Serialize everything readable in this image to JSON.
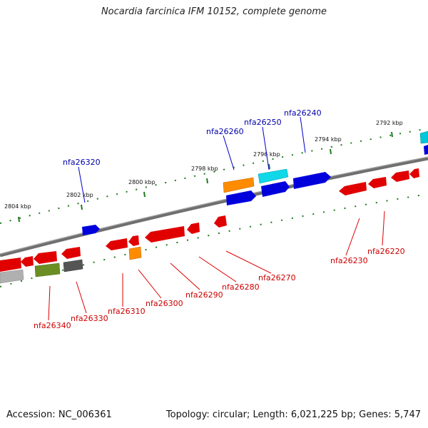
{
  "title": "Nocardia farcinica IFM 10152, complete genome",
  "footer": {
    "accession": "Accession: NC_006361",
    "summary": "Topology: circular; Length: 6,021,225 bp; Genes: 5,747"
  },
  "scale_labels": [
    "2792 kbp",
    "2794 kbp",
    "2796 kbp",
    "2798 kbp",
    "2800 kbp",
    "2802 kbp",
    "2804 kbp"
  ],
  "genes_forward": [
    "nfa26240",
    "nfa26250",
    "nfa26260",
    "nfa26320"
  ],
  "genes_reverse": [
    "nfa26220",
    "nfa26230",
    "nfa26270",
    "nfa26280",
    "nfa26290",
    "nfa26300",
    "nfa26310",
    "nfa26330",
    "nfa26340"
  ],
  "colors": {
    "forward_label": "#0000aa",
    "reverse_label": "#cc0000",
    "backbone": "#7a7a7a",
    "tick": "#1f7a1f",
    "red_gene": "#e00000",
    "blue_gene": "#0000e6",
    "cyan_gene": "#00d0e0",
    "orange_gene": "#ff8c00",
    "olive_gene": "#6b8e23",
    "gray_gene": "#555555",
    "light_gray_gene": "#b0b0b0"
  }
}
